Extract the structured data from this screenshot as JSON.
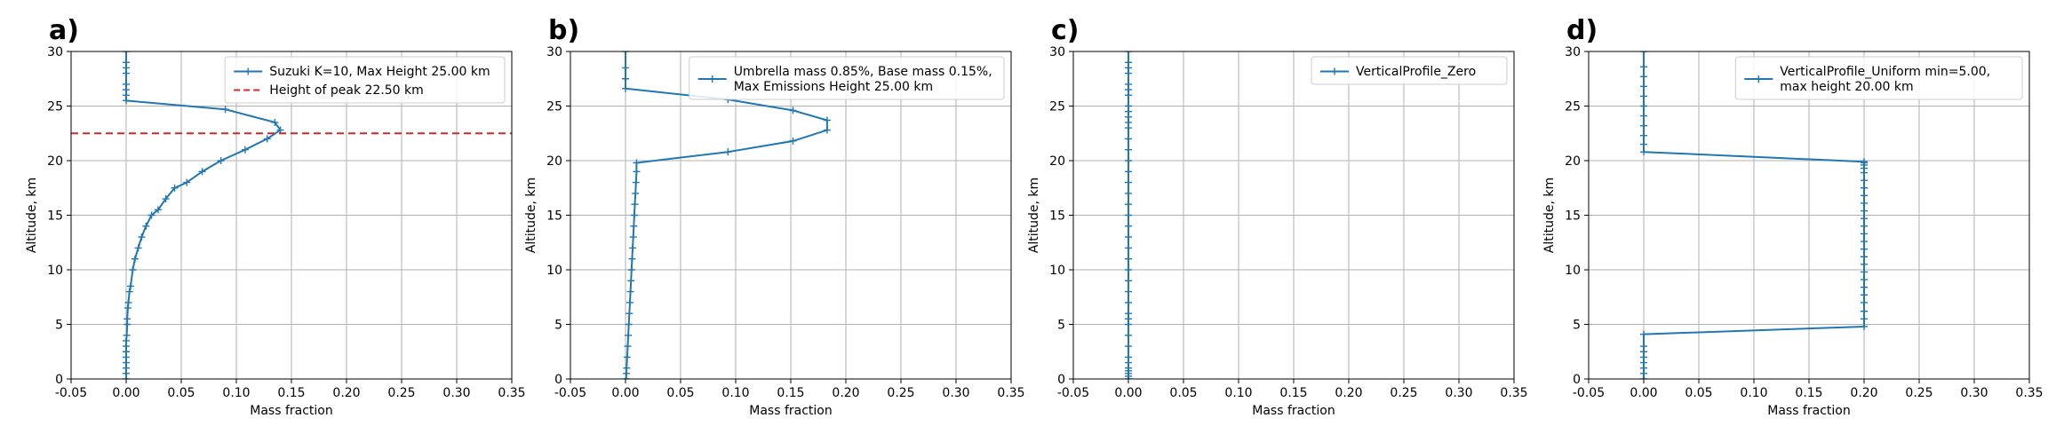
{
  "chart_data": [
    {
      "panel": "a)",
      "type": "line",
      "xlabel": "Mass fraction",
      "ylabel": "Altitude, km",
      "xlim": [
        -0.05,
        0.35
      ],
      "ylim": [
        0,
        30
      ],
      "xticks": [
        "-0.05",
        "0.00",
        "0.05",
        "0.10",
        "0.15",
        "0.20",
        "0.25",
        "0.30",
        "0.35"
      ],
      "yticks": [
        "0",
        "5",
        "10",
        "15",
        "20",
        "25",
        "30"
      ],
      "grid": true,
      "legend_position": "top-right",
      "series": [
        {
          "name": "Suzuki K=10, Max Height 25.00 km",
          "color": "#1f77b4",
          "style": "solid-plus-markers",
          "x": [
            0.0,
            0.0,
            0.0,
            0.0,
            0.0,
            0.0,
            0.0,
            0.0,
            0.0005,
            0.001,
            0.001,
            0.0015,
            0.002,
            0.003,
            0.004,
            0.006,
            0.008,
            0.011,
            0.014,
            0.018,
            0.023,
            0.029,
            0.036,
            0.044,
            0.055,
            0.069,
            0.086,
            0.108,
            0.128,
            0.14,
            0.135,
            0.09,
            0.0,
            0.0,
            0.0,
            0.0,
            0.0,
            0.0,
            0.0,
            0.0
          ],
          "y": [
            0.0,
            0.5,
            1.0,
            1.5,
            2.0,
            2.5,
            3.0,
            3.5,
            4.0,
            5.0,
            5.5,
            6.5,
            7.0,
            8.0,
            8.5,
            10.0,
            11.0,
            12.0,
            13.0,
            14.0,
            15.0,
            15.5,
            16.5,
            17.5,
            18.0,
            19.0,
            20.0,
            21.0,
            22.0,
            22.8,
            23.5,
            24.7,
            25.5,
            26.0,
            26.5,
            27.0,
            28.0,
            28.5,
            29.0,
            30.0
          ]
        },
        {
          "name": "Height of peak 22.50 km",
          "color": "#d62728",
          "style": "dashed-horizontal",
          "y_value": 22.5
        }
      ]
    },
    {
      "panel": "b)",
      "type": "line",
      "xlabel": "Mass fraction",
      "ylabel": "Altitude, km",
      "xlim": [
        -0.05,
        0.35
      ],
      "ylim": [
        0,
        30
      ],
      "xticks": [
        "-0.05",
        "0.00",
        "0.05",
        "0.10",
        "0.15",
        "0.20",
        "0.25",
        "0.30",
        "0.35"
      ],
      "yticks": [
        "0",
        "5",
        "10",
        "15",
        "20",
        "25",
        "30"
      ],
      "grid": true,
      "legend_position": "top-right",
      "series": [
        {
          "name": "Umbrella mass 0.85%, Base mass 0.15%,\nMax Emissions Height 25.00 km",
          "color": "#1f77b4",
          "style": "solid-plus-markers",
          "x": [
            0.0005,
            0.0008,
            0.001,
            0.0015,
            0.002,
            0.0025,
            0.003,
            0.0035,
            0.004,
            0.0045,
            0.005,
            0.0055,
            0.006,
            0.0065,
            0.007,
            0.0075,
            0.008,
            0.0085,
            0.009,
            0.0095,
            0.01,
            0.01,
            0.093,
            0.152,
            0.183,
            0.183,
            0.152,
            0.093,
            0.0,
            0.0,
            0.0,
            0.0
          ],
          "y": [
            0.0,
            0.5,
            1.0,
            2.0,
            3.0,
            4.0,
            5.0,
            6.0,
            7.0,
            8.0,
            9.0,
            10.0,
            11.0,
            12.0,
            13.0,
            14.0,
            15.0,
            16.0,
            17.0,
            18.0,
            19.0,
            19.8,
            20.8,
            21.8,
            22.8,
            23.7,
            24.6,
            25.6,
            26.6,
            27.5,
            28.5,
            30.0
          ]
        }
      ]
    },
    {
      "panel": "c)",
      "type": "line",
      "xlabel": "Mass fraction",
      "ylabel": "Altitude, km",
      "xlim": [
        -0.05,
        0.35
      ],
      "ylim": [
        0,
        30
      ],
      "xticks": [
        "-0.05",
        "0.00",
        "0.05",
        "0.10",
        "0.15",
        "0.20",
        "0.25",
        "0.30",
        "0.35"
      ],
      "yticks": [
        "0",
        "5",
        "10",
        "15",
        "20",
        "25",
        "30"
      ],
      "grid": true,
      "legend_position": "top-right",
      "series": [
        {
          "name": "VerticalProfile_Zero",
          "color": "#1f77b4",
          "style": "solid-plus-markers",
          "x": [
            0.0,
            0.0,
            0.0,
            0.0,
            0.0,
            0.0,
            0.0,
            0.0,
            0.0,
            0.0,
            0.0,
            0.0,
            0.0,
            0.0,
            0.0,
            0.0,
            0.0,
            0.0,
            0.0,
            0.0,
            0.0,
            0.0,
            0.0,
            0.0,
            0.0,
            0.0,
            0.0,
            0.0,
            0.0,
            0.0,
            0.0,
            0.0,
            0.0,
            0.0,
            0.0,
            0.0,
            0.0,
            0.0,
            0.0,
            0.0
          ],
          "y": [
            0.0,
            0.25,
            0.5,
            0.75,
            1.0,
            1.5,
            2.0,
            3.0,
            4.0,
            5.0,
            5.5,
            6.0,
            7.0,
            8.0,
            9.0,
            10.0,
            11.0,
            12.0,
            13.0,
            14.0,
            15.0,
            16.0,
            17.0,
            18.0,
            19.0,
            20.0,
            21.0,
            22.0,
            23.0,
            23.5,
            24.0,
            24.5,
            25.0,
            26.0,
            26.5,
            27.0,
            28.0,
            28.5,
            29.0,
            30.0
          ]
        }
      ]
    },
    {
      "panel": "d)",
      "type": "line",
      "xlabel": "Mass fraction",
      "ylabel": "Altitude, km",
      "xlim": [
        -0.05,
        0.35
      ],
      "ylim": [
        0,
        30
      ],
      "xticks": [
        "-0.05",
        "0.00",
        "0.05",
        "0.10",
        "0.15",
        "0.20",
        "0.25",
        "0.30",
        "0.35"
      ],
      "yticks": [
        "0",
        "5",
        "10",
        "15",
        "20",
        "25",
        "30"
      ],
      "grid": true,
      "legend_position": "top-right",
      "series": [
        {
          "name": "VerticalProfile_Uniform min=5.00,\n max height 20.00 km",
          "color": "#1f77b4",
          "style": "solid-plus-markers",
          "x": [
            0.0,
            0.0,
            0.0,
            0.0,
            0.0,
            0.0,
            0.0,
            0.0,
            0.2,
            0.2,
            0.2,
            0.2,
            0.2,
            0.2,
            0.2,
            0.2,
            0.2,
            0.2,
            0.2,
            0.2,
            0.2,
            0.2,
            0.2,
            0.2,
            0.2,
            0.2,
            0.2,
            0.2,
            0.2,
            0.2,
            0.2,
            0.2,
            0.2,
            0.0,
            0.0,
            0.0,
            0.0,
            0.0,
            0.0,
            0.0,
            0.0,
            0.0,
            0.0,
            0.0
          ],
          "y": [
            0.0,
            0.5,
            1.0,
            1.5,
            2.0,
            2.5,
            3.0,
            4.1,
            4.8,
            5.5,
            6.2,
            7.0,
            7.7,
            8.4,
            9.1,
            9.8,
            10.5,
            11.2,
            11.9,
            12.6,
            13.3,
            14.0,
            14.7,
            15.4,
            16.1,
            16.8,
            17.5,
            18.2,
            18.9,
            19.3,
            19.6,
            19.8,
            19.9,
            20.8,
            21.5,
            22.3,
            23.2,
            24.1,
            25.0,
            25.9,
            26.8,
            27.7,
            28.6,
            30.0
          ]
        }
      ]
    }
  ]
}
